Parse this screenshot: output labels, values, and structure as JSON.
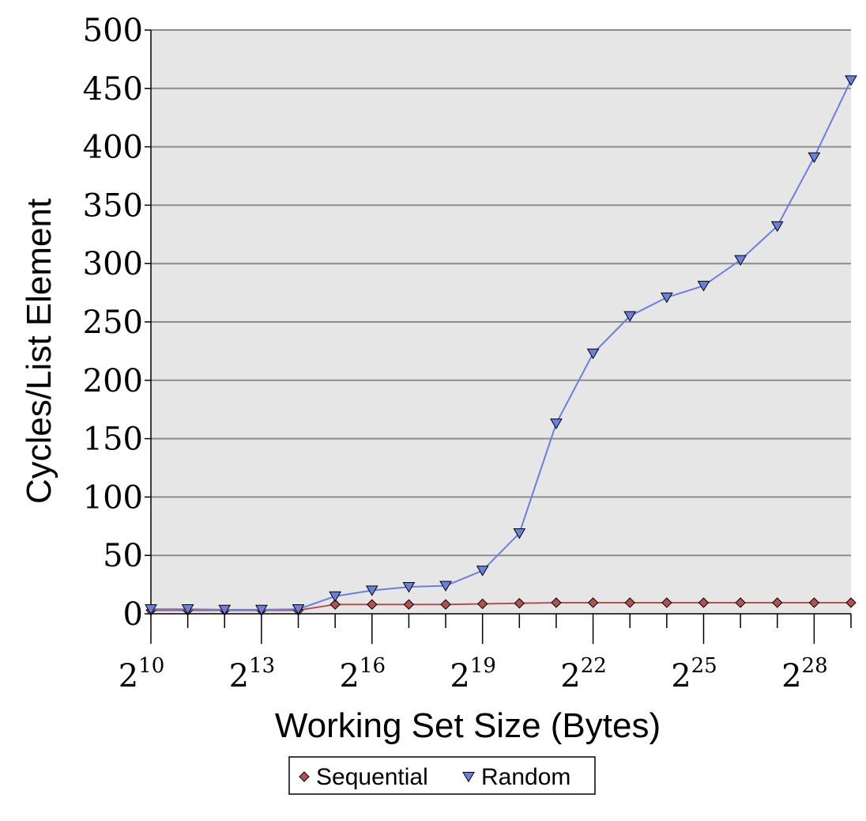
{
  "chart_data": {
    "type": "line",
    "xlabel": "Working Set Size (Bytes)",
    "ylabel": "Cycles/List Element",
    "ylim": [
      0,
      500
    ],
    "yticks": [
      0,
      50,
      100,
      150,
      200,
      250,
      300,
      350,
      400,
      450,
      500
    ],
    "x_scale": "log2",
    "x_exponents": [
      10,
      11,
      12,
      13,
      14,
      15,
      16,
      17,
      18,
      19,
      20,
      21,
      22,
      23,
      24,
      25,
      26,
      27,
      28,
      29
    ],
    "x_tick_exponents": [
      10,
      13,
      16,
      19,
      22,
      25,
      28
    ],
    "x_tick_labels": [
      "2^10",
      "2^13",
      "2^16",
      "2^19",
      "2^22",
      "2^25",
      "2^28"
    ],
    "grid": "horizontal",
    "legend_position": "bottom",
    "series": [
      {
        "name": "Sequential",
        "color": "#b5504f",
        "marker": "diamond",
        "values": [
          3,
          3,
          3,
          3,
          3,
          8,
          8,
          8,
          8,
          8.5,
          9,
          9.5,
          9.5,
          9.5,
          9.5,
          9.5,
          9.5,
          9.5,
          9.5,
          9.5
        ]
      },
      {
        "name": "Random",
        "color": "#6b7fdc",
        "marker": "triangle-down",
        "values": [
          4,
          4,
          3.5,
          3.5,
          4,
          15,
          20,
          23,
          24,
          37,
          69,
          163,
          223,
          255,
          271,
          281,
          303,
          332,
          391,
          457
        ]
      }
    ]
  }
}
